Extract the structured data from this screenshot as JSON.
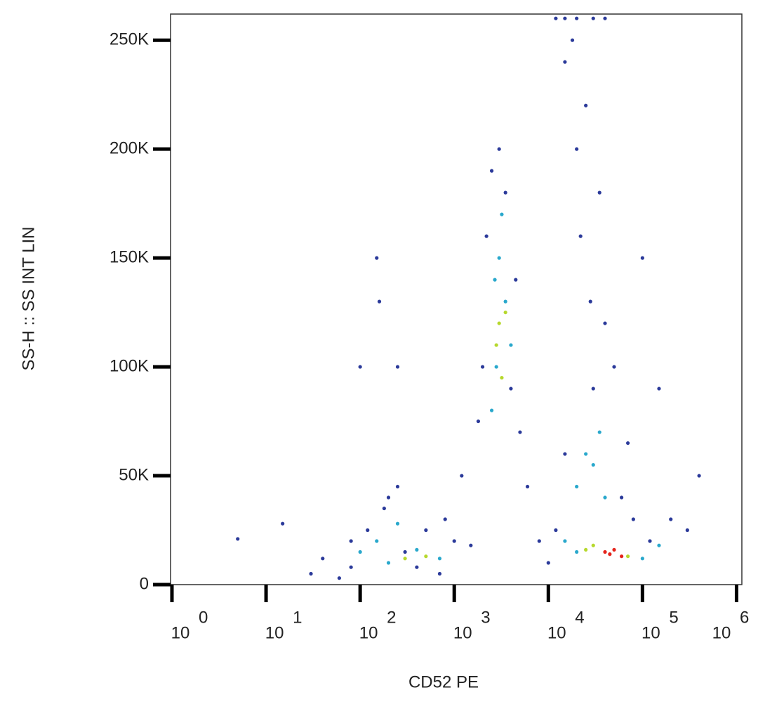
{
  "chart_data": {
    "type": "scatter",
    "x_label": "CD52 PE",
    "y_label": "SS-H :: SS INT LIN",
    "x_scale": "log",
    "xlim": [
      1,
      1100000
    ],
    "ylim": [
      0,
      262000
    ],
    "xticks": [
      {
        "value": 1,
        "label": "10",
        "exponent": "0"
      },
      {
        "value": 10,
        "label": "10",
        "exponent": "1"
      },
      {
        "value": 100,
        "label": "10",
        "exponent": "2"
      },
      {
        "value": 1000,
        "label": "10",
        "exponent": "3"
      },
      {
        "value": 10000,
        "label": "10",
        "exponent": "4"
      },
      {
        "value": 100000,
        "label": "10",
        "exponent": "5"
      },
      {
        "value": 1000000,
        "label": "10",
        "exponent": "6"
      }
    ],
    "yticks": [
      0,
      {
        "value": 50000,
        "label": "50K"
      },
      {
        "value": 100000,
        "label": "100K"
      },
      {
        "value": 150000,
        "label": "150K"
      },
      {
        "value": 200000,
        "label": "200K"
      },
      {
        "value": 250000,
        "label": "250K"
      }
    ],
    "series": [
      {
        "color": "#2b3a9a",
        "x": [
          5,
          15,
          30,
          40,
          60,
          80,
          100,
          150,
          160,
          200,
          250,
          300,
          400,
          500,
          700,
          800,
          1000,
          1200,
          1500,
          1800,
          2000,
          2200,
          2500,
          3000,
          3500,
          4000,
          4500,
          5000,
          6000,
          8000,
          10000,
          12000,
          15000,
          15000,
          18000,
          20000,
          22000,
          25000,
          28000,
          30000,
          35000,
          40000,
          50000,
          60000,
          70000,
          80000,
          100000,
          120000,
          150000,
          200000,
          300000,
          400000,
          80,
          120,
          180,
          250,
          12000,
          15000,
          20000,
          30000,
          40000
        ],
        "values": [
          21000,
          28000,
          5000,
          12000,
          3000,
          20000,
          100000,
          150000,
          130000,
          40000,
          100000,
          15000,
          8000,
          25000,
          5000,
          30000,
          20000,
          50000,
          18000,
          75000,
          100000,
          160000,
          190000,
          200000,
          180000,
          90000,
          140000,
          70000,
          45000,
          20000,
          10000,
          25000,
          60000,
          240000,
          250000,
          200000,
          160000,
          220000,
          130000,
          90000,
          180000,
          120000,
          100000,
          40000,
          65000,
          30000,
          150000,
          20000,
          90000,
          30000,
          25000,
          50000,
          8000,
          25000,
          35000,
          45000,
          260000,
          260000,
          260000,
          260000,
          260000
        ]
      },
      {
        "color": "#29a8cc",
        "x": [
          100,
          150,
          200,
          250,
          400,
          2500,
          2800,
          3000,
          3200,
          3500,
          2700,
          4000,
          20000,
          25000,
          30000,
          35000,
          40000,
          20000,
          100000,
          150000,
          15000,
          700
        ],
        "values": [
          15000,
          20000,
          10000,
          28000,
          16000,
          80000,
          100000,
          150000,
          170000,
          130000,
          140000,
          110000,
          45000,
          60000,
          55000,
          70000,
          40000,
          15000,
          12000,
          18000,
          20000,
          12000
        ]
      },
      {
        "color": "#b6d82c",
        "x": [
          300,
          500,
          3000,
          2800,
          3200,
          3500,
          25000,
          70000,
          30000
        ],
        "values": [
          12000,
          13000,
          120000,
          110000,
          95000,
          125000,
          16000,
          13000,
          18000
        ]
      },
      {
        "color": "#e5231b",
        "x": [
          40000,
          50000,
          60000,
          45000
        ],
        "values": [
          15000,
          16000,
          13000,
          14000
        ]
      }
    ]
  }
}
